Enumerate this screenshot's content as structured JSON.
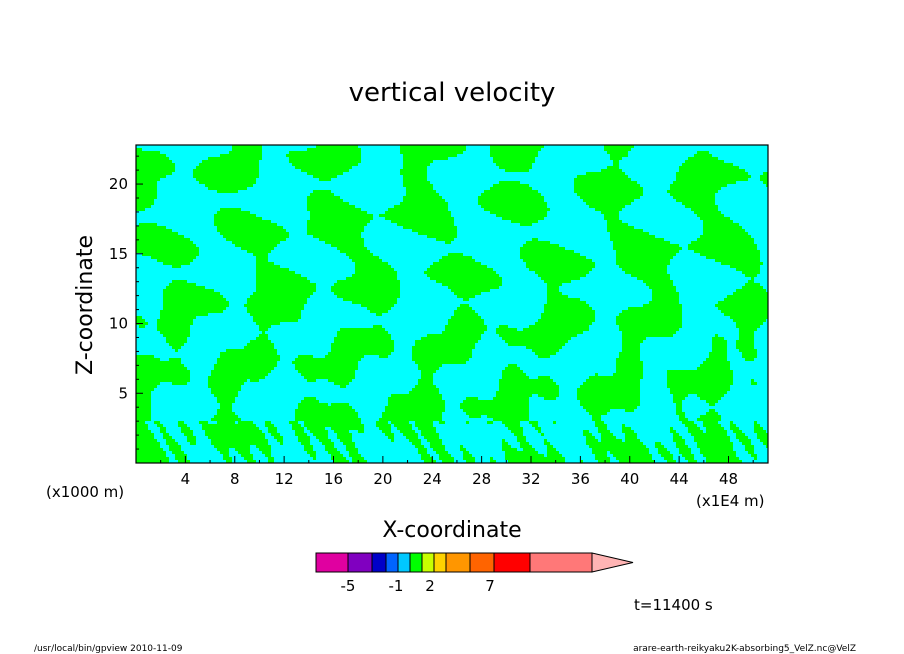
{
  "chart_data": {
    "type": "heatmap",
    "title": "vertical velocity",
    "xlabel": "X-coordinate",
    "ylabel": "Z-coordinate",
    "x_unit_left": "(x1000 m)",
    "x_unit_right": "(x1E4 m)",
    "xlim": [
      0,
      51.2
    ],
    "ylim": [
      0,
      22.8
    ],
    "xticks": [
      4,
      8,
      12,
      16,
      20,
      24,
      28,
      32,
      36,
      40,
      44,
      48
    ],
    "yticks": [
      5,
      10,
      15,
      20
    ],
    "time_label": "t=11400 s",
    "dominant_colors": [
      "#00ff00",
      "#00ffff"
    ],
    "colorbar": {
      "colors": [
        "#e000a0",
        "#8000c0",
        "#0000c8",
        "#0064ff",
        "#00c8ff",
        "#00ff00",
        "#c8ff00",
        "#ffd200",
        "#ff9600",
        "#ff6400",
        "#ff0000",
        "#ff7878",
        "#ffb4b4"
      ],
      "tick_labels": [
        "-5",
        "-1",
        "2",
        "7"
      ]
    }
  },
  "footer": {
    "left": "/usr/local/bin/gpview  2010-11-09",
    "right": "arare-earth-reikyaku2K-absorbing5_VelZ.nc@VelZ"
  }
}
